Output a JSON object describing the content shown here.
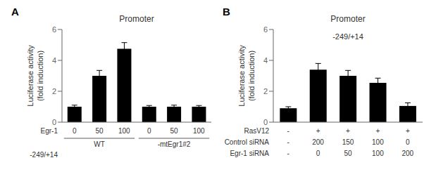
{
  "chart_data": [
    {
      "type": "bar",
      "panel_label": "A",
      "title": "Promoter",
      "ylabel": "Luciferase activity\n(fold induction)",
      "values": [
        1.0,
        3.0,
        4.75,
        1.0,
        1.0,
        1.0
      ],
      "errors": [
        0.1,
        0.35,
        0.4,
        0.08,
        0.1,
        0.08
      ],
      "color": "#000000",
      "ylim": [
        0,
        6
      ],
      "yticks": [
        0,
        2,
        4,
        6
      ],
      "grid": false,
      "label_rows": [
        {
          "name": "Egr-1",
          "labels": [
            "0",
            "50",
            "100",
            "0",
            "50",
            "100"
          ]
        }
      ],
      "group_labels": [
        "WT",
        "WT",
        "WT",
        "-mtEgr1#2",
        "-mtEgr1#2",
        "-mtEgr1#2"
      ],
      "annotations": [
        "-249/+14"
      ]
    },
    {
      "type": "bar",
      "panel_label": "B",
      "title": "Promoter",
      "subtitle": "-249/+14",
      "ylabel": "Luciferase activity\n(fold induction)",
      "values": [
        0.9,
        3.4,
        3.0,
        2.55,
        1.05
      ],
      "errors": [
        0.1,
        0.4,
        0.35,
        0.3,
        0.2
      ],
      "color": "#000000",
      "ylim": [
        0,
        6
      ],
      "yticks": [
        0,
        2,
        4,
        6
      ],
      "grid": false,
      "label_rows": [
        {
          "name": "RasV12",
          "labels": [
            "-",
            "+",
            "+",
            "+",
            "+"
          ]
        },
        {
          "name": "Control siRNA",
          "labels": [
            "-",
            "200",
            "150",
            "100",
            "0"
          ]
        },
        {
          "name": "Egr-1 siRNA",
          "labels": [
            "-",
            "0",
            "50",
            "100",
            "200"
          ]
        }
      ]
    }
  ]
}
